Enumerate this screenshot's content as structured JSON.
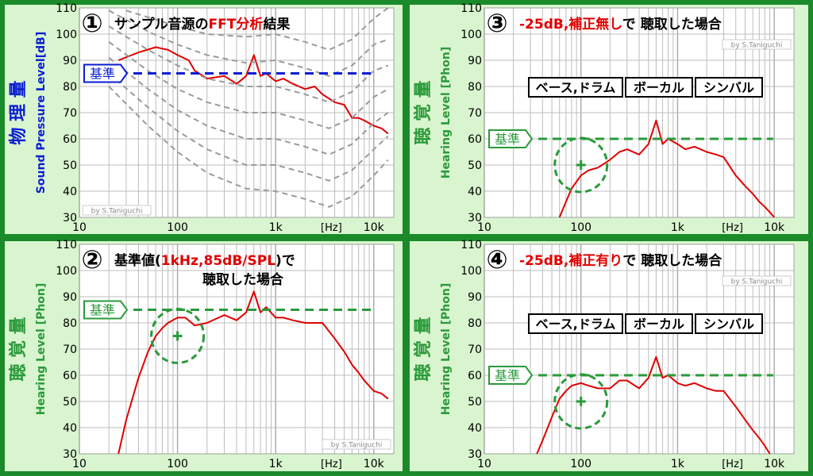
{
  "colors": {
    "outer": "#1a8a2a",
    "panel_bg": "#d9f5cf",
    "plot_bg": "#ffffff",
    "grid": "#bdbdbd",
    "measured": "#e00000",
    "contour": "#9a9a9a",
    "blue": "#0a1ed2",
    "green": "#2a9a3a",
    "title_red": "#e00000"
  },
  "credit": "by S.Taniguchi",
  "hz_label": "[Hz]",
  "panels": [
    {
      "id": "p1",
      "number": "①",
      "title_parts": [
        {
          "text": "サンプル音源の",
          "color": "#000000"
        },
        {
          "text": "FFT分析",
          "color": "#e00000"
        },
        {
          "text": "結果",
          "color": "#000000"
        }
      ],
      "title_line2": "",
      "y_kanji": "物 理 量",
      "y_label": "Sound Pressure Level[dB]",
      "y_color": "#0a1ed2",
      "ref_label": "基準",
      "ref_value": 85,
      "ref_color": "#0a1ed2",
      "boxes": []
    },
    {
      "id": "p2",
      "number": "②",
      "title_parts": [
        {
          "text": "基準値(",
          "color": "#000000"
        },
        {
          "text": "1kHz,85dB/SPL",
          "color": "#e00000"
        },
        {
          "text": ")で",
          "color": "#000000"
        }
      ],
      "title_line2": "聴取した場合",
      "y_kanji": "聴 覚 量",
      "y_label": "Hearing Level [Phon]",
      "y_color": "#2a9a3a",
      "ref_label": "基準",
      "ref_value": 85,
      "ref_color": "#2a9a3a",
      "boxes": []
    },
    {
      "id": "p3",
      "number": "③",
      "title_parts": [
        {
          "text": "-25dB,補正無し",
          "color": "#e00000"
        },
        {
          "text": "で 聴取した場合",
          "color": "#000000"
        }
      ],
      "title_line2": "",
      "y_kanji": "聴 覚 量",
      "y_label": "Hearing Level [Phon]",
      "y_color": "#2a9a3a",
      "ref_label": "基準",
      "ref_value": 60,
      "ref_color": "#2a9a3a",
      "boxes": [
        "ベース,ドラム",
        "ボーカル",
        "シンバル"
      ]
    },
    {
      "id": "p4",
      "number": "④",
      "title_parts": [
        {
          "text": "-25dB,補正有り",
          "color": "#e00000"
        },
        {
          "text": "で 聴取した場合",
          "color": "#000000"
        }
      ],
      "title_line2": "",
      "y_kanji": "聴 覚 量",
      "y_label": "Hearing Level [Phon]",
      "y_color": "#2a9a3a",
      "ref_label": "基準",
      "ref_value": 60,
      "ref_color": "#2a9a3a",
      "boxes": [
        "ベース,ドラム",
        "ボーカル",
        "シンバル"
      ]
    }
  ],
  "chart_data": [
    {
      "panel": "p1",
      "type": "line",
      "xscale": "log",
      "xlim": [
        10,
        16000
      ],
      "ylim": [
        30,
        110
      ],
      "x_ticks": [
        "10",
        "100",
        "1k",
        "10k"
      ],
      "y_ticks": [
        30,
        40,
        50,
        60,
        70,
        80,
        90,
        100,
        110
      ],
      "grid": true,
      "series": [
        {
          "style": "measured",
          "x": [
            25,
            40,
            60,
            80,
            100,
            130,
            150,
            200,
            300,
            400,
            500,
            600,
            700,
            800,
            1000,
            1200,
            1500,
            2000,
            2500,
            3000,
            4000,
            5000,
            6000,
            7000,
            8000,
            10000,
            12000,
            14000
          ],
          "y": [
            90,
            93,
            95,
            94,
            92,
            90,
            86,
            83,
            84,
            81,
            84,
            92,
            84,
            85,
            82,
            83,
            81,
            79,
            80,
            77,
            74,
            73,
            68,
            68,
            67,
            65,
            64,
            62
          ]
        },
        {
          "style": "contour",
          "x": [
            30,
            100,
            200,
            500,
            1000,
            2000,
            3500,
            6000,
            10000,
            14000
          ],
          "y": [
            109,
            103,
            100,
            99,
            100,
            97,
            94,
            98,
            106,
            110
          ]
        },
        {
          "style": "contour",
          "x": [
            20,
            50,
            100,
            200,
            500,
            1000,
            2000,
            3500,
            6000,
            10000,
            14000
          ],
          "y": [
            109,
            101,
            96,
            92,
            89,
            90,
            87,
            84,
            88,
            96,
            98
          ]
        },
        {
          "style": "contour",
          "x": [
            20,
            50,
            100,
            200,
            500,
            1000,
            2000,
            3500,
            6000,
            10000,
            14000
          ],
          "y": [
            103,
            94,
            88,
            83,
            80,
            80,
            77,
            74,
            78,
            86,
            88
          ]
        },
        {
          "style": "contour",
          "x": [
            20,
            50,
            100,
            200,
            500,
            1000,
            2000,
            3500,
            6000,
            10000,
            14000
          ],
          "y": [
            97,
            86,
            79,
            74,
            70,
            70,
            67,
            64,
            68,
            76,
            79
          ]
        },
        {
          "style": "contour",
          "x": [
            20,
            50,
            100,
            200,
            500,
            1000,
            2000,
            3500,
            6000,
            10000,
            14000
          ],
          "y": [
            91,
            79,
            71,
            65,
            60,
            60,
            57,
            54,
            58,
            66,
            70
          ]
        },
        {
          "style": "contour",
          "x": [
            20,
            50,
            100,
            200,
            500,
            1000,
            2000,
            3500,
            6000,
            10000,
            14000
          ],
          "y": [
            85,
            72,
            63,
            56,
            50,
            50,
            47,
            44,
            48,
            56,
            61
          ]
        },
        {
          "style": "contour",
          "x": [
            20,
            50,
            100,
            200,
            500,
            1000,
            2000,
            3500,
            6000,
            10000,
            14000
          ],
          "y": [
            80,
            65,
            55,
            47,
            41,
            40,
            37,
            34,
            38,
            46,
            52
          ]
        }
      ]
    },
    {
      "panel": "p2",
      "type": "line",
      "xscale": "log",
      "xlim": [
        10,
        16000
      ],
      "ylim": [
        30,
        110
      ],
      "x_ticks": [
        "10",
        "100",
        "1k",
        "10k"
      ],
      "y_ticks": [
        30,
        40,
        50,
        60,
        70,
        80,
        90,
        100,
        110
      ],
      "grid": true,
      "annotation": {
        "x": 100,
        "y": 75
      },
      "series": [
        {
          "style": "measured",
          "x": [
            25,
            30,
            40,
            50,
            60,
            70,
            80,
            100,
            120,
            150,
            200,
            300,
            400,
            500,
            600,
            700,
            800,
            1000,
            1200,
            1500,
            2000,
            2500,
            3000,
            4000,
            5000,
            6000,
            7000,
            8000,
            10000,
            12000,
            14000
          ],
          "y": [
            30,
            43,
            59,
            69,
            75,
            78,
            80,
            82,
            82,
            79,
            80,
            83,
            81,
            84,
            92,
            84,
            86,
            82,
            82,
            81,
            80,
            80,
            80,
            74,
            69,
            64,
            61,
            58,
            54,
            53,
            51
          ]
        }
      ]
    },
    {
      "panel": "p3",
      "type": "line",
      "xscale": "log",
      "xlim": [
        10,
        16000
      ],
      "ylim": [
        30,
        110
      ],
      "x_ticks": [
        "10",
        "100",
        "1k",
        "10k"
      ],
      "y_ticks": [
        30,
        40,
        50,
        60,
        70,
        80,
        90,
        100,
        110
      ],
      "grid": true,
      "annotation": {
        "x": 100,
        "y": 50
      },
      "series": [
        {
          "style": "measured",
          "x": [
            60,
            70,
            80,
            100,
            120,
            150,
            200,
            250,
            300,
            400,
            500,
            600,
            700,
            800,
            1000,
            1200,
            1500,
            2000,
            2500,
            3000,
            4000,
            5000,
            6000,
            7000,
            8000,
            9000,
            10000
          ],
          "y": [
            30,
            36,
            41,
            46,
            48,
            49,
            52,
            55,
            56,
            54,
            58,
            67,
            58,
            60,
            58,
            56,
            57,
            55,
            54,
            53,
            46,
            42,
            39,
            36,
            34,
            32,
            30
          ]
        }
      ]
    },
    {
      "panel": "p4",
      "type": "line",
      "xscale": "log",
      "xlim": [
        10,
        16000
      ],
      "ylim": [
        30,
        110
      ],
      "x_ticks": [
        "10",
        "100",
        "1k",
        "10k"
      ],
      "y_ticks": [
        30,
        40,
        50,
        60,
        70,
        80,
        90,
        100,
        110
      ],
      "grid": true,
      "annotation": {
        "x": 100,
        "y": 50
      },
      "series": [
        {
          "style": "measured",
          "x": [
            35,
            40,
            50,
            60,
            70,
            80,
            100,
            120,
            150,
            200,
            250,
            300,
            400,
            500,
            600,
            700,
            800,
            1000,
            1200,
            1500,
            2000,
            2500,
            3000,
            4000,
            5000,
            6000,
            7000,
            8000,
            9000
          ],
          "y": [
            30,
            35,
            44,
            51,
            54,
            56,
            57,
            56,
            55,
            55,
            58,
            58,
            55,
            59,
            67,
            59,
            60,
            57,
            56,
            57,
            55,
            54,
            54,
            48,
            43,
            39,
            36,
            33,
            30
          ]
        }
      ]
    }
  ]
}
